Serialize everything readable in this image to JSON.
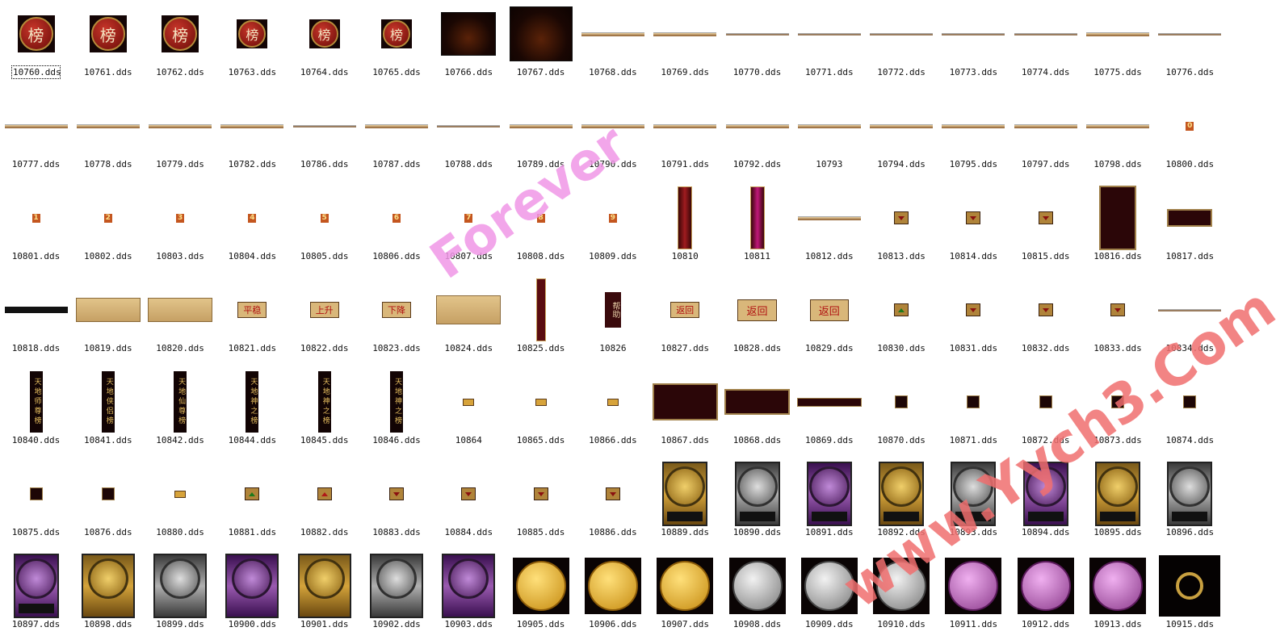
{
  "items": [
    {
      "label": "10760.dds",
      "kind": "badge",
      "text": "榜",
      "selected": true
    },
    {
      "label": "10761.dds",
      "kind": "badge",
      "text": "榜"
    },
    {
      "label": "10762.dds",
      "kind": "badge",
      "text": "榜"
    },
    {
      "label": "10763.dds",
      "kind": "badge-sm",
      "text": "榜"
    },
    {
      "label": "10764.dds",
      "kind": "badge-sm",
      "text": "榜"
    },
    {
      "label": "10765.dds",
      "kind": "badge-sm",
      "text": "榜"
    },
    {
      "label": "10766.dds",
      "kind": "dark-sm"
    },
    {
      "label": "10767.dds",
      "kind": "dark-lg"
    },
    {
      "label": "10768.dds",
      "kind": "bar"
    },
    {
      "label": "10769.dds",
      "kind": "bar"
    },
    {
      "label": "10770.dds",
      "kind": "bar-thin"
    },
    {
      "label": "10771.dds",
      "kind": "bar-thin"
    },
    {
      "label": "10772.dds",
      "kind": "bar-thin"
    },
    {
      "label": "10773.dds",
      "kind": "bar-thin"
    },
    {
      "label": "10774.dds",
      "kind": "bar-thin"
    },
    {
      "label": "10775.dds",
      "kind": "bar"
    },
    {
      "label": "10776.dds",
      "kind": "bar-thin"
    },
    {
      "label": "10777.dds",
      "kind": "bar"
    },
    {
      "label": "10778.dds",
      "kind": "bar"
    },
    {
      "label": "10779.dds",
      "kind": "bar"
    },
    {
      "label": "10782.dds",
      "kind": "bar"
    },
    {
      "label": "10786.dds",
      "kind": "bar-thin"
    },
    {
      "label": "10787.dds",
      "kind": "bar"
    },
    {
      "label": "10788.dds",
      "kind": "bar-thin"
    },
    {
      "label": "10789.dds",
      "kind": "bar"
    },
    {
      "label": "10790.dds",
      "kind": "bar"
    },
    {
      "label": "10791.dds",
      "kind": "bar"
    },
    {
      "label": "10792.dds",
      "kind": "bar"
    },
    {
      "label": "10793",
      "kind": "bar"
    },
    {
      "label": "10794.dds",
      "kind": "bar"
    },
    {
      "label": "10795.dds",
      "kind": "bar"
    },
    {
      "label": "10797.dds",
      "kind": "bar"
    },
    {
      "label": "10798.dds",
      "kind": "bar"
    },
    {
      "label": "10800.dds",
      "kind": "num",
      "text": "0"
    },
    {
      "label": "10801.dds",
      "kind": "num",
      "text": "1"
    },
    {
      "label": "10802.dds",
      "kind": "num",
      "text": "2"
    },
    {
      "label": "10803.dds",
      "kind": "num",
      "text": "3"
    },
    {
      "label": "10804.dds",
      "kind": "num",
      "text": "4"
    },
    {
      "label": "10805.dds",
      "kind": "num",
      "text": "5"
    },
    {
      "label": "10806.dds",
      "kind": "num",
      "text": "6"
    },
    {
      "label": "10807.dds",
      "kind": "num",
      "text": "7"
    },
    {
      "label": "10808.dds",
      "kind": "num",
      "text": "8"
    },
    {
      "label": "10809.dds",
      "kind": "num",
      "text": "9"
    },
    {
      "label": "10810",
      "kind": "pillar"
    },
    {
      "label": "10811",
      "kind": "pillar-pink"
    },
    {
      "label": "10812.dds",
      "kind": "bar"
    },
    {
      "label": "10813.dds",
      "kind": "small-down"
    },
    {
      "label": "10814.dds",
      "kind": "small-down"
    },
    {
      "label": "10815.dds",
      "kind": "small-down"
    },
    {
      "label": "10816.dds",
      "kind": "scroll"
    },
    {
      "label": "10817.dds",
      "kind": "dropdown"
    },
    {
      "label": "10818.dds",
      "kind": "blackbar"
    },
    {
      "label": "10819.dds",
      "kind": "parch"
    },
    {
      "label": "10820.dds",
      "kind": "parch"
    },
    {
      "label": "10821.dds",
      "kind": "label",
      "text": "平稳"
    },
    {
      "label": "10822.dds",
      "kind": "label",
      "text": "上升"
    },
    {
      "label": "10823.dds",
      "kind": "label",
      "text": "下降"
    },
    {
      "label": "10824.dds",
      "kind": "parch-tall"
    },
    {
      "label": "10825.dds",
      "kind": "redcol"
    },
    {
      "label": "10826",
      "kind": "seal",
      "text": "帮助"
    },
    {
      "label": "10827.dds",
      "kind": "label",
      "text": "返回"
    },
    {
      "label": "10828.dds",
      "kind": "label-big",
      "text": "返回"
    },
    {
      "label": "10829.dds",
      "kind": "label-big",
      "text": "返回"
    },
    {
      "label": "10830.dds",
      "kind": "small-up"
    },
    {
      "label": "10831.dds",
      "kind": "small-down"
    },
    {
      "label": "10832.dds",
      "kind": "small-down"
    },
    {
      "label": "10833.dds",
      "kind": "small-down"
    },
    {
      "label": "10834.dds",
      "kind": "bar-thin"
    },
    {
      "label": "10840.dds",
      "kind": "vertical",
      "text": "天地师尊榜"
    },
    {
      "label": "10841.dds",
      "kind": "vertical",
      "text": "天地侠侣榜"
    },
    {
      "label": "10842.dds",
      "kind": "vertical",
      "text": "天地仙尊榜"
    },
    {
      "label": "10844.dds",
      "kind": "vertical",
      "text": "天地神之榜"
    },
    {
      "label": "10845.dds",
      "kind": "vertical",
      "text": "天地神之榜"
    },
    {
      "label": "10846.dds",
      "kind": "vertical",
      "text": "天地神之榜"
    },
    {
      "label": "10864",
      "kind": "tiny"
    },
    {
      "label": "10865.dds",
      "kind": "tiny"
    },
    {
      "label": "10866.dds",
      "kind": "tiny"
    },
    {
      "label": "10867.dds",
      "kind": "panel"
    },
    {
      "label": "10868.dds",
      "kind": "panel2"
    },
    {
      "label": "10869.dds",
      "kind": "thinbar2"
    },
    {
      "label": "10870.dds",
      "kind": "icon"
    },
    {
      "label": "10871.dds",
      "kind": "icon"
    },
    {
      "label": "10872.dds",
      "kind": "icon"
    },
    {
      "label": "10873.dds",
      "kind": "icon"
    },
    {
      "label": "10874.dds",
      "kind": "icon"
    },
    {
      "label": "10875.dds",
      "kind": "icon"
    },
    {
      "label": "10876.dds",
      "kind": "icon"
    },
    {
      "label": "10880.dds",
      "kind": "tiny"
    },
    {
      "label": "10881.dds",
      "kind": "small-up"
    },
    {
      "label": "10882.dds",
      "kind": "small-redup"
    },
    {
      "label": "10883.dds",
      "kind": "small-down"
    },
    {
      "label": "10884.dds",
      "kind": "small-down"
    },
    {
      "label": "10885.dds",
      "kind": "small-down"
    },
    {
      "label": "10886.dds",
      "kind": "small-down"
    },
    {
      "label": "10889.dds",
      "kind": "wheel-gold"
    },
    {
      "label": "10890.dds",
      "kind": "wheel-silver"
    },
    {
      "label": "10891.dds",
      "kind": "wheel-purple"
    },
    {
      "label": "10892.dds",
      "kind": "wheel-gold"
    },
    {
      "label": "10893.dds",
      "kind": "wheel-silver"
    },
    {
      "label": "10894.dds",
      "kind": "wheel-purple"
    },
    {
      "label": "10895.dds",
      "kind": "wheel-gold"
    },
    {
      "label": "10896.dds",
      "kind": "wheel-silver"
    },
    {
      "label": "10897.dds",
      "kind": "wheel-purple"
    },
    {
      "label": "10898.dds",
      "kind": "square-gold"
    },
    {
      "label": "10899.dds",
      "kind": "square-silver"
    },
    {
      "label": "10900.dds",
      "kind": "square-purple"
    },
    {
      "label": "10901.dds",
      "kind": "square-gold"
    },
    {
      "label": "10902.dds",
      "kind": "square-silver"
    },
    {
      "label": "10903.dds",
      "kind": "square-purple"
    },
    {
      "label": "10905.dds",
      "kind": "coin-gold"
    },
    {
      "label": "10906.dds",
      "kind": "coin-gold"
    },
    {
      "label": "10907.dds",
      "kind": "coin-gold"
    },
    {
      "label": "10908.dds",
      "kind": "coin-silver"
    },
    {
      "label": "10909.dds",
      "kind": "coin-silver"
    },
    {
      "label": "10910.dds",
      "kind": "coin-silver"
    },
    {
      "label": "10911.dds",
      "kind": "coin-purple"
    },
    {
      "label": "10912.dds",
      "kind": "coin-purple"
    },
    {
      "label": "10913.dds",
      "kind": "coin-purple"
    },
    {
      "label": "10915.dds",
      "kind": "ring"
    }
  ],
  "watermarks": [
    "Forever",
    "www.Yych3.Com"
  ]
}
